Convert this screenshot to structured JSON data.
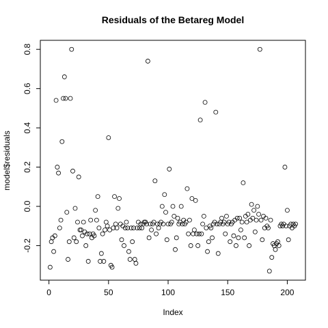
{
  "chart_data": {
    "type": "scatter",
    "title": "Residuals of the Betareg Model",
    "x_label": "Index",
    "y_label": "model$residuals",
    "x": [
      1,
      2,
      3,
      4,
      5,
      6,
      7,
      8,
      9,
      10,
      11,
      12,
      13,
      14,
      15,
      16,
      17,
      18,
      19,
      20,
      21,
      22,
      23,
      24,
      25,
      26,
      27,
      28,
      29,
      30,
      31,
      32,
      33,
      34,
      35,
      36,
      37,
      38,
      39,
      40,
      41,
      42,
      43,
      44,
      45,
      46,
      47,
      48,
      49,
      50,
      51,
      52,
      53,
      54,
      55,
      56,
      57,
      58,
      59,
      60,
      61,
      62,
      63,
      64,
      65,
      66,
      67,
      68,
      69,
      70,
      71,
      72,
      73,
      74,
      75,
      76,
      77,
      78,
      79,
      80,
      81,
      82,
      83,
      84,
      85,
      86,
      87,
      88,
      89,
      90,
      91,
      92,
      93,
      94,
      95,
      96,
      97,
      98,
      99,
      100,
      101,
      102,
      103,
      104,
      105,
      106,
      107,
      108,
      109,
      110,
      111,
      112,
      113,
      114,
      115,
      116,
      117,
      118,
      119,
      120,
      121,
      122,
      123,
      124,
      125,
      126,
      127,
      128,
      129,
      130,
      131,
      132,
      133,
      134,
      135,
      136,
      137,
      138,
      139,
      140,
      141,
      142,
      143,
      144,
      145,
      146,
      147,
      148,
      149,
      150,
      151,
      152,
      153,
      154,
      155,
      156,
      157,
      158,
      159,
      160,
      161,
      162,
      163,
      164,
      165,
      166,
      167,
      168,
      169,
      170,
      171,
      172,
      173,
      174,
      175,
      176,
      177,
      178,
      179,
      180,
      181,
      182,
      183,
      184,
      185,
      186,
      187,
      188,
      189,
      190,
      191,
      192,
      193,
      194,
      195,
      196,
      197,
      198,
      199,
      200,
      201,
      202,
      203,
      204,
      205,
      206,
      207
    ],
    "values": [
      -0.31,
      -0.18,
      -0.16,
      -0.23,
      -0.15,
      0.54,
      0.2,
      0.17,
      -0.11,
      -0.07,
      0.33,
      0.55,
      0.66,
      0.55,
      -0.03,
      -0.27,
      -0.18,
      0.55,
      0.8,
      0.18,
      -0.16,
      -0.01,
      -0.18,
      -0.08,
      0.15,
      -0.12,
      -0.12,
      -0.15,
      -0.08,
      -0.13,
      -0.2,
      -0.14,
      -0.28,
      -0.14,
      -0.07,
      -0.16,
      -0.14,
      -0.15,
      -0.02,
      -0.07,
      0.05,
      -0.11,
      -0.28,
      -0.24,
      -0.14,
      -0.28,
      -0.12,
      -0.08,
      -0.1,
      0.35,
      -0.12,
      -0.3,
      -0.31,
      -0.11,
      0.05,
      -0.09,
      -0.11,
      -0.01,
      0.04,
      -0.09,
      -0.17,
      -0.1,
      -0.2,
      -0.11,
      -0.08,
      -0.11,
      -0.23,
      -0.27,
      -0.11,
      -0.18,
      -0.11,
      -0.27,
      -0.29,
      -0.11,
      -0.08,
      -0.11,
      -0.09,
      -0.11,
      -0.09,
      -0.08,
      -0.08,
      -0.09,
      0.74,
      -0.16,
      -0.09,
      -0.12,
      -0.09,
      -0.08,
      0.13,
      -0.14,
      -0.09,
      -0.11,
      -0.09,
      -0.08,
      0.0,
      -0.09,
      0.06,
      -0.03,
      -0.17,
      -0.09,
      0.19,
      -0.09,
      -0.08,
      0.0,
      -0.05,
      -0.22,
      -0.16,
      -0.06,
      -0.09,
      -0.08,
      0.0,
      -0.09,
      -0.07,
      -0.09,
      -0.08,
      0.09,
      -0.14,
      -0.07,
      -0.2,
      0.04,
      -0.14,
      -0.12,
      0.03,
      -0.14,
      -0.2,
      -0.14,
      0.44,
      -0.14,
      -0.09,
      -0.05,
      0.53,
      -0.11,
      -0.23,
      -0.18,
      -0.1,
      -0.11,
      -0.16,
      -0.09,
      -0.08,
      0.48,
      -0.09,
      -0.24,
      -0.09,
      -0.08,
      -0.06,
      -0.09,
      -0.08,
      -0.14,
      -0.05,
      -0.09,
      -0.08,
      -0.18,
      -0.09,
      -0.08,
      -0.15,
      -0.07,
      -0.2,
      -0.06,
      -0.16,
      -0.06,
      -0.12,
      -0.08,
      0.12,
      -0.16,
      -0.05,
      -0.08,
      -0.04,
      -0.2,
      -0.07,
      0.01,
      -0.06,
      -0.02,
      -0.13,
      -0.07,
      0.0,
      -0.04,
      0.8,
      -0.07,
      -0.17,
      -0.05,
      -0.11,
      -0.06,
      -0.1,
      -0.11,
      -0.33,
      -0.07,
      -0.26,
      -0.19,
      -0.2,
      -0.22,
      -0.19,
      -0.18,
      -0.2,
      -0.1,
      -0.09,
      -0.1,
      -0.09,
      0.2,
      -0.1,
      -0.02,
      -0.17,
      -0.1,
      -0.09,
      -0.11,
      -0.09,
      -0.1,
      -0.09
    ],
    "color": "#000000",
    "xlim": [
      -7.24,
      215.24
    ],
    "xticks": [
      0,
      50,
      100,
      150,
      200
    ],
    "ylim": [
      -0.376,
      0.846
    ],
    "yticks": [
      -0.2,
      {
        "value": 0,
        "label": "0.0"
      },
      0.2,
      0.4,
      0.6,
      0.8
    ],
    "grid": false
  }
}
